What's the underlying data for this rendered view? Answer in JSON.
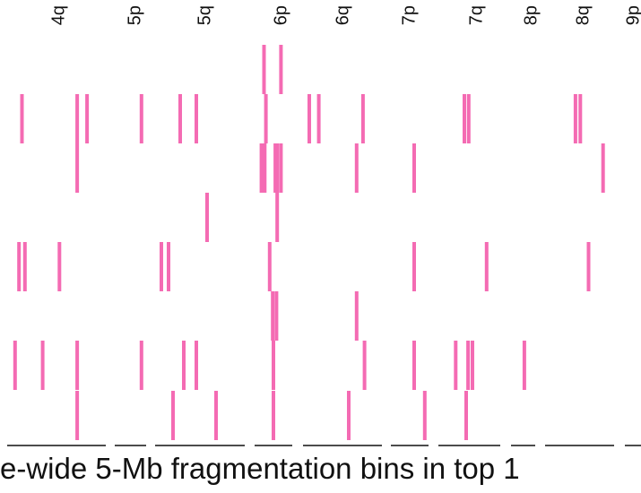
{
  "caption": "e-wide 5-Mb fragmentation bins in top 1",
  "colors": {
    "bin": "#f46bb3",
    "axis": "#111111"
  },
  "chart_data": {
    "type": "heatmap",
    "title": "",
    "xlabel": "e-wide 5-Mb fragmentation bins in top 1",
    "ylabel": "",
    "grid": false,
    "legend": "none",
    "arms": [
      "4q",
      "5p",
      "5q",
      "6p",
      "6q",
      "7p",
      "7q",
      "8p",
      "8q",
      "9p"
    ],
    "rows": 9,
    "bins_per_row": [
      [
        {
          "arm": "6p",
          "x": 0.25
        },
        {
          "arm": "6p",
          "x": 0.7
        }
      ],
      [
        {
          "arm": "4q",
          "x": 0.15
        },
        {
          "arm": "4q",
          "x": 0.71
        },
        {
          "arm": "4q",
          "x": 0.81
        },
        {
          "arm": "5p",
          "x": 0.85
        },
        {
          "arm": "5q",
          "x": 0.28
        },
        {
          "arm": "5q",
          "x": 0.46
        },
        {
          "arm": "6p",
          "x": 0.3
        },
        {
          "arm": "6q",
          "x": 0.08
        },
        {
          "arm": "6q",
          "x": 0.2
        },
        {
          "arm": "6q",
          "x": 0.76
        },
        {
          "arm": "7q",
          "x": 0.42
        },
        {
          "arm": "7q",
          "x": 0.49
        },
        {
          "arm": "8q",
          "x": 0.44
        },
        {
          "arm": "8q",
          "x": 0.51
        }
      ],
      [
        {
          "arm": "4q",
          "x": 0.71
        },
        {
          "arm": "6p",
          "x": 0.18
        },
        {
          "arm": "6p",
          "x": 0.27
        },
        {
          "arm": "6p",
          "x": 0.55
        },
        {
          "arm": "6p",
          "x": 0.6
        },
        {
          "arm": "6p",
          "x": 0.7
        },
        {
          "arm": "6q",
          "x": 0.68
        },
        {
          "arm": "7p",
          "x": 0.62
        },
        {
          "arm": "8q",
          "x": 0.84
        }
      ],
      [
        {
          "arm": "5q",
          "x": 0.58
        },
        {
          "arm": "6p",
          "x": 0.6
        }
      ],
      [
        {
          "arm": "4q",
          "x": 0.12
        },
        {
          "arm": "4q",
          "x": 0.18
        },
        {
          "arm": "4q",
          "x": 0.53
        },
        {
          "arm": "5q",
          "x": 0.07
        },
        {
          "arm": "5q",
          "x": 0.15
        },
        {
          "arm": "6p",
          "x": 0.4
        },
        {
          "arm": "7p",
          "x": 0.62
        },
        {
          "arm": "7q",
          "x": 0.78
        },
        {
          "arm": "8q",
          "x": 0.63
        }
      ],
      [
        {
          "arm": "6p",
          "x": 0.48
        },
        {
          "arm": "6p",
          "x": 0.58
        },
        {
          "arm": "6q",
          "x": 0.68
        }
      ],
      [
        {
          "arm": "4q",
          "x": 0.08
        },
        {
          "arm": "4q",
          "x": 0.36
        },
        {
          "arm": "4q",
          "x": 0.71
        },
        {
          "arm": "5p",
          "x": 0.85
        },
        {
          "arm": "5q",
          "x": 0.32
        },
        {
          "arm": "5q",
          "x": 0.46
        },
        {
          "arm": "6p",
          "x": 0.5
        },
        {
          "arm": "6q",
          "x": 0.78
        },
        {
          "arm": "7p",
          "x": 0.62
        },
        {
          "arm": "7q",
          "x": 0.28
        },
        {
          "arm": "7q",
          "x": 0.48
        },
        {
          "arm": "7q",
          "x": 0.55
        },
        {
          "arm": "8p",
          "x": 0.55
        }
      ],
      [
        {
          "arm": "4q",
          "x": 0.71
        },
        {
          "arm": "5q",
          "x": 0.2
        },
        {
          "arm": "5q",
          "x": 0.68
        },
        {
          "arm": "6p",
          "x": 0.5
        },
        {
          "arm": "6q",
          "x": 0.58
        },
        {
          "arm": "7p",
          "x": 0.9
        },
        {
          "arm": "7q",
          "x": 0.45
        }
      ],
      []
    ]
  }
}
